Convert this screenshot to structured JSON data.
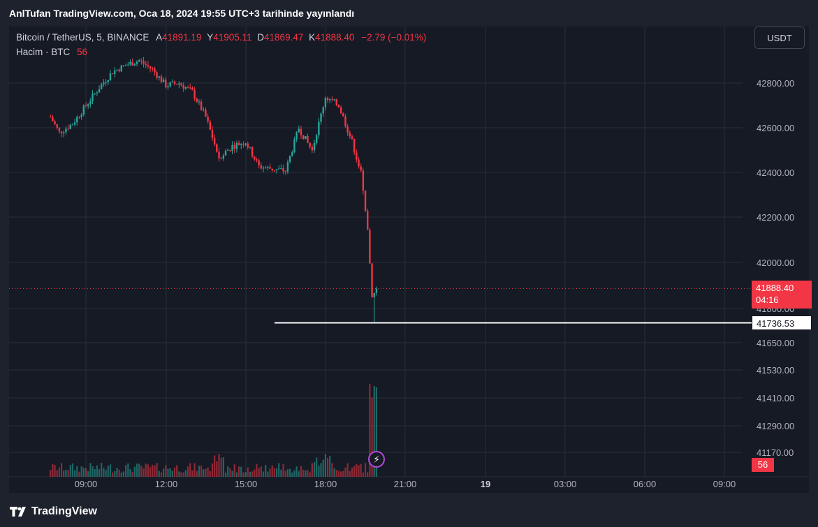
{
  "publish_banner": "AnlTufan TradingView.com, Oca 18, 2024 19:55 UTC+3 tarihinde yayınlandı",
  "legend": {
    "symbol": "Bitcoin / TetherUS, 5, BINANCE",
    "open_label": "A",
    "open": "41891.19",
    "high_label": "Y",
    "high": "41905.11",
    "low_label": "D",
    "low": "41869.47",
    "close_label": "K",
    "close": "41888.40",
    "change": "−2.79 (−0.01%)",
    "volume_label": "Hacim · BTC",
    "volume": "56"
  },
  "currency_button": "USDT",
  "current_price": {
    "price": "41888.40",
    "countdown": "04:16"
  },
  "horizontal_line_label": "41736.53",
  "volume_tag": "56",
  "brand": "TradingView",
  "colors": {
    "up": "#26a69a",
    "down": "#f23645",
    "grid": "#2a2e39",
    "text": "#b2b5be",
    "bg": "#161a25"
  },
  "chart_data": {
    "type": "candlestick",
    "price_axis": {
      "ticks": [
        "42800.00",
        "42600.00",
        "42400.00",
        "42200.00",
        "42000.00",
        "41800.00",
        "41650.00",
        "41530.00",
        "41410.00",
        "41290.00",
        "41170.00"
      ],
      "upper_range": [
        41780,
        42950
      ]
    },
    "time_axis": {
      "ticks": [
        "09:00",
        "12:00",
        "15:00",
        "18:00",
        "21:00",
        "19",
        "03:00",
        "06:00",
        "09:00"
      ],
      "bold_ticks": [
        "19"
      ]
    },
    "interval": "5",
    "price_trend": [
      {
        "t": "07:40",
        "p": 42650
      },
      {
        "t": "08:00",
        "p": 42580
      },
      {
        "t": "08:30",
        "p": 42620
      },
      {
        "t": "09:00",
        "p": 42700
      },
      {
        "t": "09:30",
        "p": 42780
      },
      {
        "t": "10:00",
        "p": 42850
      },
      {
        "t": "10:30",
        "p": 42880
      },
      {
        "t": "11:00",
        "p": 42900
      },
      {
        "t": "11:30",
        "p": 42860
      },
      {
        "t": "12:00",
        "p": 42790
      },
      {
        "t": "12:30",
        "p": 42800
      },
      {
        "t": "13:00",
        "p": 42760
      },
      {
        "t": "13:30",
        "p": 42650
      },
      {
        "t": "14:00",
        "p": 42470
      },
      {
        "t": "14:30",
        "p": 42520
      },
      {
        "t": "15:00",
        "p": 42540
      },
      {
        "t": "15:30",
        "p": 42430
      },
      {
        "t": "16:00",
        "p": 42420
      },
      {
        "t": "16:30",
        "p": 42410
      },
      {
        "t": "17:00",
        "p": 42600
      },
      {
        "t": "17:30",
        "p": 42500
      },
      {
        "t": "18:00",
        "p": 42740
      },
      {
        "t": "18:30",
        "p": 42700
      },
      {
        "t": "19:00",
        "p": 42540
      },
      {
        "t": "19:20",
        "p": 42400
      },
      {
        "t": "19:35",
        "p": 42150
      },
      {
        "t": "19:45",
        "p": 41850
      },
      {
        "t": "19:55",
        "p": 41888.4
      }
    ],
    "session_low": 41736.53,
    "volume_last": 56,
    "volume_spike_at": "19:45"
  }
}
